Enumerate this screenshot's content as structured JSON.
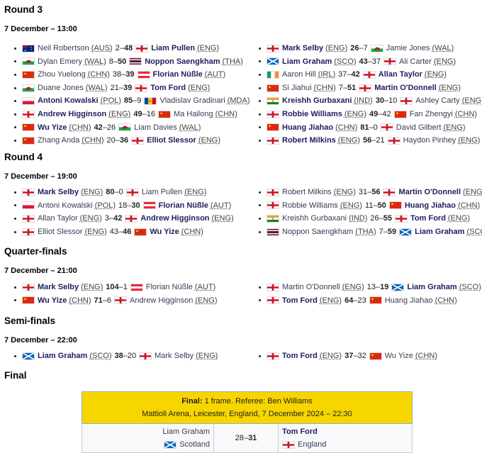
{
  "colors": {
    "winner": "#202060",
    "final_header": "#f7d600"
  },
  "rounds": [
    {
      "title": "Round 3",
      "date": "7 December – 13:00",
      "left": [
        [
          [
            "Neil Robertson",
            "AUS",
            0
          ],
          "2",
          "48",
          [
            "Liam Pullen",
            "ENG",
            1
          ]
        ],
        [
          [
            "Dylan Emery",
            "WAL",
            0
          ],
          "8",
          "50",
          [
            "Noppon Saengkham",
            "THA",
            1
          ]
        ],
        [
          [
            "Zhou Yuelong",
            "CHN",
            0
          ],
          "38",
          "39",
          [
            "Florian Nüßle",
            "AUT",
            1
          ]
        ],
        [
          [
            "Duane Jones",
            "WAL",
            0
          ],
          "21",
          "39",
          [
            "Tom Ford",
            "ENG",
            1
          ]
        ],
        [
          [
            "Antoni Kowalski",
            "POL",
            1
          ],
          "85",
          "9",
          [
            "Vladislav Gradinari",
            "MDA",
            0
          ]
        ],
        [
          [
            "Andrew Higginson",
            "ENG",
            1
          ],
          "49",
          "16",
          [
            "Ma Hailong",
            "CHN",
            0
          ]
        ],
        [
          [
            "Wu Yize",
            "CHN",
            1
          ],
          "42",
          "26",
          [
            "Liam Davies",
            "WAL",
            0
          ]
        ],
        [
          [
            "Zhang Anda",
            "CHN",
            0
          ],
          "20",
          "36",
          [
            "Elliot Slessor",
            "ENG",
            1
          ]
        ]
      ],
      "right": [
        [
          [
            "Mark Selby",
            "ENG",
            1
          ],
          "26",
          "7",
          [
            "Jamie Jones",
            "WAL",
            0
          ]
        ],
        [
          [
            "Liam Graham",
            "SCO",
            1
          ],
          "43",
          "37",
          [
            "Ali Carter",
            "ENG",
            0
          ]
        ],
        [
          [
            "Aaron Hill",
            "IRL",
            0
          ],
          "37",
          "42",
          [
            "Allan Taylor",
            "ENG",
            1
          ]
        ],
        [
          [
            "Si Jiahui",
            "CHN",
            0
          ],
          "7",
          "51",
          [
            "Martin O'Donnell",
            "ENG",
            1
          ]
        ],
        [
          [
            "Kreishh Gurbaxani",
            "IND",
            1
          ],
          "30",
          "10",
          [
            "Ashley Carty",
            "ENG",
            0
          ]
        ],
        [
          [
            "Robbie Williams",
            "ENG",
            1
          ],
          "49",
          "42",
          [
            "Fan Zhengyi",
            "CHN",
            0
          ]
        ],
        [
          [
            "Huang Jiahao",
            "CHN",
            1
          ],
          "81",
          "0",
          [
            "David Gilbert",
            "ENG",
            0
          ]
        ],
        [
          [
            "Robert Milkins",
            "ENG",
            1
          ],
          "56",
          "21",
          [
            "Haydon Pinhey",
            "ENG",
            0
          ]
        ]
      ]
    },
    {
      "title": "Round 4",
      "date": "7 December – 19:00",
      "left": [
        [
          [
            "Mark Selby",
            "ENG",
            1
          ],
          "80",
          "0",
          [
            "Liam Pullen",
            "ENG",
            0
          ]
        ],
        [
          [
            "Antoni Kowalski",
            "POL",
            0
          ],
          "18",
          "30",
          [
            "Florian Nüßle",
            "AUT",
            1
          ]
        ],
        [
          [
            "Allan Taylor",
            "ENG",
            0
          ],
          "3",
          "42",
          [
            "Andrew Higginson",
            "ENG",
            1
          ]
        ],
        [
          [
            "Elliot Slessor",
            "ENG",
            0
          ],
          "43",
          "46",
          [
            "Wu Yize",
            "CHN",
            1
          ]
        ]
      ],
      "right": [
        [
          [
            "Robert Milkins",
            "ENG",
            0
          ],
          "31",
          "56",
          [
            "Martin O'Donnell",
            "ENG",
            1
          ]
        ],
        [
          [
            "Robbie Williams",
            "ENG",
            0
          ],
          "11",
          "50",
          [
            "Huang Jiahao",
            "CHN",
            1
          ]
        ],
        [
          [
            "Kreishh Gurbaxani",
            "IND",
            0
          ],
          "26",
          "55",
          [
            "Tom Ford",
            "ENG",
            1
          ]
        ],
        [
          [
            "Noppon Saengkham",
            "THA",
            0
          ],
          "7",
          "59",
          [
            "Liam Graham",
            "SCO",
            1
          ]
        ]
      ]
    },
    {
      "title": "Quarter-finals",
      "date": "7 December – 21:00",
      "left": [
        [
          [
            "Mark Selby",
            "ENG",
            1
          ],
          "104",
          "1",
          [
            "Florian Nüßle",
            "AUT",
            0
          ]
        ],
        [
          [
            "Wu Yize",
            "CHN",
            1
          ],
          "71",
          "6",
          [
            "Andrew Higginson",
            "ENG",
            0
          ]
        ]
      ],
      "right": [
        [
          [
            "Martin O'Donnell",
            "ENG",
            0
          ],
          "13",
          "19",
          [
            "Liam Graham",
            "SCO",
            1
          ]
        ],
        [
          [
            "Tom Ford",
            "ENG",
            1
          ],
          "64",
          "23",
          [
            "Huang Jiahao",
            "CHN",
            0
          ]
        ]
      ]
    },
    {
      "title": "Semi-finals",
      "date": "7 December – 22:00",
      "left": [
        [
          [
            "Liam Graham",
            "SCO",
            1
          ],
          "38",
          "20",
          [
            "Mark Selby",
            "ENG",
            0
          ]
        ]
      ],
      "right": [
        [
          [
            "Tom Ford",
            "ENG",
            1
          ],
          "37",
          "32",
          [
            "Wu Yize",
            "CHN",
            0
          ]
        ]
      ]
    }
  ],
  "final": {
    "title": "Final",
    "label": "Final:",
    "info": " 1 frame. Referee: Ben Williams",
    "venue": "Mattioli Arena, Leicester, England, 7 December 2024 – 22:30",
    "p1": "Liam Graham",
    "c1": "Scotland",
    "f1": "SCO",
    "s1": "28",
    "s2": "31",
    "p2": "Tom Ford",
    "c2": "England",
    "f2": "ENG"
  }
}
